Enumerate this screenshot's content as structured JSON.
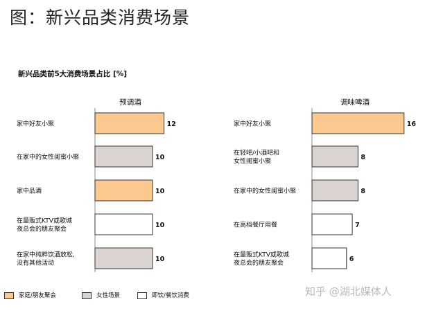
{
  "page_title": "图：新兴品类消费场景",
  "watermark": "知乎 @湖北媒体人",
  "colors": {
    "family_friends": "#fbc890",
    "female": "#dbd3cf",
    "on_premise": "#ffffff",
    "border": "#333333",
    "axis": "#888888"
  },
  "chart_data": {
    "type": "bar",
    "title": "新兴品类前5大消费场景占比 [%]",
    "legend_placement": "bottom-left",
    "legend": [
      {
        "key": "family_friends",
        "label": "家庭/朋友聚会",
        "color": "#fbc890"
      },
      {
        "key": "female",
        "label": "女性场景",
        "color": "#dbd3cf"
      },
      {
        "key": "on_premise",
        "label": "即饮/餐饮消费",
        "color": "#ffffff"
      }
    ],
    "panels": [
      {
        "name": "预调酒",
        "xlim": [
          0,
          16
        ],
        "bars": [
          {
            "label": [
              "家中好友小聚"
            ],
            "value": 12,
            "category": "family_friends"
          },
          {
            "label": [
              "在家中的女性闺蜜小聚"
            ],
            "value": 10,
            "category": "female"
          },
          {
            "label": [
              "家中品酒"
            ],
            "value": 10,
            "category": "family_friends"
          },
          {
            "label": [
              "在量贩式KTV或歌城",
              "夜总会的朋友聚会"
            ],
            "value": 10,
            "category": "on_premise"
          },
          {
            "label": [
              "在家中纯粹饮酒放松,",
              "没有其他活动"
            ],
            "value": 10,
            "category": "female"
          }
        ]
      },
      {
        "name": "调味啤酒",
        "xlim": [
          0,
          16
        ],
        "bars": [
          {
            "label": [
              "家中好友小聚"
            ],
            "value": 16,
            "category": "family_friends"
          },
          {
            "label": [
              "在轻吧/小酒吧和",
              "女性闺蜜小聚"
            ],
            "value": 8,
            "category": "female"
          },
          {
            "label": [
              "在家中的女性闺蜜小聚"
            ],
            "value": 8,
            "category": "female"
          },
          {
            "label": [
              "在高档餐厅用餐"
            ],
            "value": 7,
            "category": "on_premise"
          },
          {
            "label": [
              "在量贩式KTV或歌城",
              "夜总会的朋友聚会"
            ],
            "value": 6,
            "category": "on_premise"
          }
        ]
      }
    ]
  }
}
